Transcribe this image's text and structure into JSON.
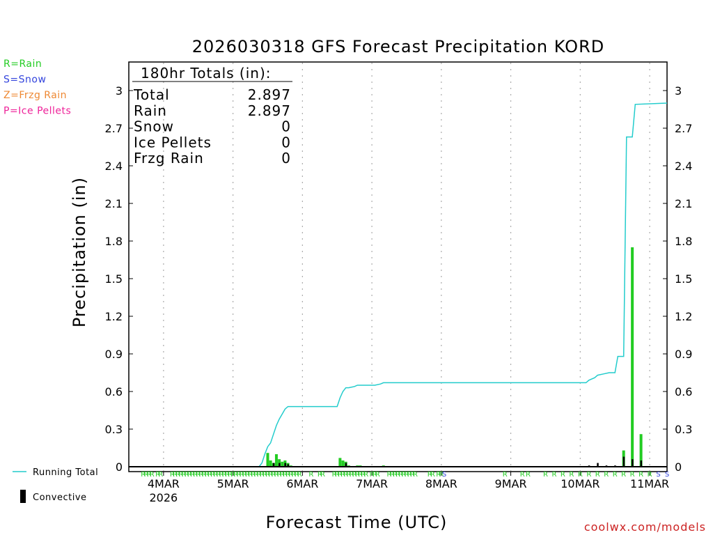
{
  "title": "2026030318 GFS Forecast Precipitation KORD",
  "watermark": "coolwx.com/models",
  "legend_types": [
    {
      "label": "R=Rain",
      "color": "#22cc22"
    },
    {
      "label": "S=Snow",
      "color": "#3344dd"
    },
    {
      "label": "Z=Frzg Rain",
      "color": "#ee8833"
    },
    {
      "label": "P=Ice Pellets",
      "color": "#ee2299"
    }
  ],
  "legend_running_total": "Running Total",
  "legend_convective": "Convective",
  "totals": {
    "heading": "180hr Totals (in):",
    "rows": [
      {
        "label": "Total",
        "value": "2.897"
      },
      {
        "label": "Rain",
        "value": "2.897"
      },
      {
        "label": "Snow",
        "value": "0"
      },
      {
        "label": "Ice Pellets",
        "value": "0"
      },
      {
        "label": "Frzg Rain",
        "value": "0"
      }
    ]
  },
  "chart_data": {
    "type": "bar",
    "title": "2026030318 GFS Forecast Precipitation KORD",
    "xlabel": "Forecast Time (UTC)",
    "ylabel": "Precipitation (in)",
    "ylim": [
      0,
      3.2
    ],
    "yticks": [
      0,
      0.3,
      0.6,
      0.9,
      1.2,
      1.5,
      1.8,
      2.1,
      2.4,
      2.7,
      3
    ],
    "ytick_labels": [
      "0",
      "0.3",
      "0.6",
      "0.9",
      "1.2",
      "1.5",
      "1.8",
      "2.1",
      "2.4",
      "2.7",
      "3"
    ],
    "x_range_hours": [
      -6,
      180
    ],
    "x_ticks": [
      {
        "hour": 6,
        "label": "4MAR",
        "sublabel": "2026"
      },
      {
        "hour": 30,
        "label": "5MAR"
      },
      {
        "hour": 54,
        "label": "6MAR"
      },
      {
        "hour": 78,
        "label": "7MAR"
      },
      {
        "hour": 102,
        "label": "8MAR"
      },
      {
        "hour": 126,
        "label": "9MAR"
      },
      {
        "hour": 150,
        "label": "10MAR"
      },
      {
        "hour": 174,
        "label": "11MAR"
      }
    ],
    "series": [
      {
        "name": "Precipitation",
        "color": "#22cc22",
        "points": [
          [
            42,
            0.11
          ],
          [
            43,
            0.05
          ],
          [
            44,
            0.03
          ],
          [
            45,
            0.1
          ],
          [
            46,
            0.06
          ],
          [
            47,
            0.04
          ],
          [
            48,
            0.05
          ],
          [
            49,
            0.03
          ],
          [
            50,
            0.01
          ],
          [
            67,
            0.07
          ],
          [
            68,
            0.05
          ],
          [
            69,
            0.04
          ],
          [
            70,
            0.01
          ],
          [
            73,
            0.01
          ],
          [
            74,
            0.01
          ],
          [
            82,
            0.01
          ],
          [
            165,
            0.13
          ],
          [
            168,
            1.75
          ],
          [
            171,
            0.26
          ]
        ]
      },
      {
        "name": "Convective",
        "color": "#000000",
        "points": [
          [
            44,
            0.03
          ],
          [
            46,
            0.03
          ],
          [
            48,
            0.03
          ],
          [
            49,
            0.02
          ],
          [
            69,
            0.03
          ],
          [
            153,
            0.01
          ],
          [
            156,
            0.03
          ],
          [
            159,
            0.01
          ],
          [
            162,
            0.01
          ],
          [
            165,
            0.08
          ],
          [
            168,
            0.06
          ],
          [
            171,
            0.05
          ]
        ]
      },
      {
        "name": "Running Total",
        "color": "#22cccc",
        "points": [
          [
            -6,
            0
          ],
          [
            39,
            0
          ],
          [
            40,
            0.03
          ],
          [
            41,
            0.1
          ],
          [
            42,
            0.16
          ],
          [
            43,
            0.19
          ],
          [
            44,
            0.26
          ],
          [
            45,
            0.33
          ],
          [
            46,
            0.38
          ],
          [
            47,
            0.42
          ],
          [
            48,
            0.46
          ],
          [
            49,
            0.48
          ],
          [
            60,
            0.48
          ],
          [
            66,
            0.48
          ],
          [
            67,
            0.55
          ],
          [
            68,
            0.6
          ],
          [
            69,
            0.63
          ],
          [
            70,
            0.63
          ],
          [
            72,
            0.64
          ],
          [
            73,
            0.65
          ],
          [
            79,
            0.65
          ],
          [
            81,
            0.66
          ],
          [
            82,
            0.67
          ],
          [
            150,
            0.67
          ],
          [
            152,
            0.67
          ],
          [
            153,
            0.69
          ],
          [
            155,
            0.71
          ],
          [
            156,
            0.73
          ],
          [
            158,
            0.74
          ],
          [
            160,
            0.75
          ],
          [
            162,
            0.75
          ],
          [
            163,
            0.88
          ],
          [
            165,
            0.88
          ],
          [
            166,
            2.63
          ],
          [
            168,
            2.63
          ],
          [
            169,
            2.89
          ],
          [
            180,
            2.9
          ]
        ]
      }
    ],
    "type_codes": [
      {
        "hour": -1,
        "code": "R"
      },
      {
        "hour": 0,
        "code": "R"
      },
      {
        "hour": 1,
        "code": "R"
      },
      {
        "hour": 2,
        "code": "R"
      },
      {
        "hour": 4,
        "code": "R"
      },
      {
        "hour": 5,
        "code": "R"
      },
      {
        "hour": 9,
        "code": "R"
      },
      {
        "hour": 10,
        "code": "R"
      },
      {
        "hour": 11,
        "code": "R"
      },
      {
        "hour": 12,
        "code": "R"
      },
      {
        "hour": 13,
        "code": "R"
      },
      {
        "hour": 14,
        "code": "R"
      },
      {
        "hour": 15,
        "code": "R"
      },
      {
        "hour": 16,
        "code": "R"
      },
      {
        "hour": 17,
        "code": "R"
      },
      {
        "hour": 18,
        "code": "R"
      },
      {
        "hour": 19,
        "code": "R"
      },
      {
        "hour": 20,
        "code": "R"
      },
      {
        "hour": 21,
        "code": "R"
      },
      {
        "hour": 22,
        "code": "R"
      },
      {
        "hour": 23,
        "code": "R"
      },
      {
        "hour": 24,
        "code": "R"
      },
      {
        "hour": 25,
        "code": "R"
      },
      {
        "hour": 26,
        "code": "R"
      },
      {
        "hour": 27,
        "code": "R"
      },
      {
        "hour": 28,
        "code": "R"
      },
      {
        "hour": 29,
        "code": "R"
      },
      {
        "hour": 30,
        "code": "R"
      },
      {
        "hour": 31,
        "code": "R"
      },
      {
        "hour": 32,
        "code": "R"
      },
      {
        "hour": 33,
        "code": "R"
      },
      {
        "hour": 34,
        "code": "R"
      },
      {
        "hour": 35,
        "code": "R"
      },
      {
        "hour": 36,
        "code": "R"
      },
      {
        "hour": 37,
        "code": "R"
      },
      {
        "hour": 38,
        "code": "R"
      },
      {
        "hour": 39,
        "code": "R"
      },
      {
        "hour": 40,
        "code": "R"
      },
      {
        "hour": 41,
        "code": "R"
      },
      {
        "hour": 42,
        "code": "R"
      },
      {
        "hour": 43,
        "code": "R"
      },
      {
        "hour": 44,
        "code": "R"
      },
      {
        "hour": 45,
        "code": "R"
      },
      {
        "hour": 46,
        "code": "R"
      },
      {
        "hour": 47,
        "code": "R"
      },
      {
        "hour": 48,
        "code": "R"
      },
      {
        "hour": 49,
        "code": "R"
      },
      {
        "hour": 50,
        "code": "R"
      },
      {
        "hour": 51,
        "code": "R"
      },
      {
        "hour": 52,
        "code": "R"
      },
      {
        "hour": 53,
        "code": "R"
      },
      {
        "hour": 57,
        "code": "R"
      },
      {
        "hour": 60,
        "code": "R"
      },
      {
        "hour": 61,
        "code": "R"
      },
      {
        "hour": 65,
        "code": "R"
      },
      {
        "hour": 66,
        "code": "R"
      },
      {
        "hour": 67,
        "code": "R"
      },
      {
        "hour": 68,
        "code": "R"
      },
      {
        "hour": 69,
        "code": "R"
      },
      {
        "hour": 70,
        "code": "R"
      },
      {
        "hour": 71,
        "code": "R"
      },
      {
        "hour": 72,
        "code": "R"
      },
      {
        "hour": 73,
        "code": "R"
      },
      {
        "hour": 74,
        "code": "R"
      },
      {
        "hour": 75,
        "code": "R"
      },
      {
        "hour": 76,
        "code": "R"
      },
      {
        "hour": 78,
        "code": "R"
      },
      {
        "hour": 79,
        "code": "R"
      },
      {
        "hour": 80,
        "code": "R"
      },
      {
        "hour": 84,
        "code": "R"
      },
      {
        "hour": 85,
        "code": "R"
      },
      {
        "hour": 86,
        "code": "R"
      },
      {
        "hour": 87,
        "code": "R"
      },
      {
        "hour": 88,
        "code": "R"
      },
      {
        "hour": 89,
        "code": "R"
      },
      {
        "hour": 90,
        "code": "R"
      },
      {
        "hour": 91,
        "code": "R"
      },
      {
        "hour": 92,
        "code": "R"
      },
      {
        "hour": 93,
        "code": "R"
      },
      {
        "hour": 98,
        "code": "R"
      },
      {
        "hour": 99,
        "code": "R"
      },
      {
        "hour": 101,
        "code": "R"
      },
      {
        "hour": 102,
        "code": "R"
      },
      {
        "hour": 103,
        "code": "S"
      },
      {
        "hour": 124,
        "code": "R"
      },
      {
        "hour": 130,
        "code": "R"
      },
      {
        "hour": 132,
        "code": "R"
      },
      {
        "hour": 138,
        "code": "R"
      },
      {
        "hour": 141,
        "code": "R"
      },
      {
        "hour": 144,
        "code": "R"
      },
      {
        "hour": 147,
        "code": "R"
      },
      {
        "hour": 150,
        "code": "R"
      },
      {
        "hour": 153,
        "code": "R"
      },
      {
        "hour": 156,
        "code": "R"
      },
      {
        "hour": 159,
        "code": "R"
      },
      {
        "hour": 162,
        "code": "R"
      },
      {
        "hour": 165,
        "code": "R"
      },
      {
        "hour": 168,
        "code": "R"
      },
      {
        "hour": 171,
        "code": "R"
      },
      {
        "hour": 174,
        "code": "R"
      },
      {
        "hour": 177,
        "code": "S"
      },
      {
        "hour": 180,
        "code": "S"
      }
    ]
  }
}
